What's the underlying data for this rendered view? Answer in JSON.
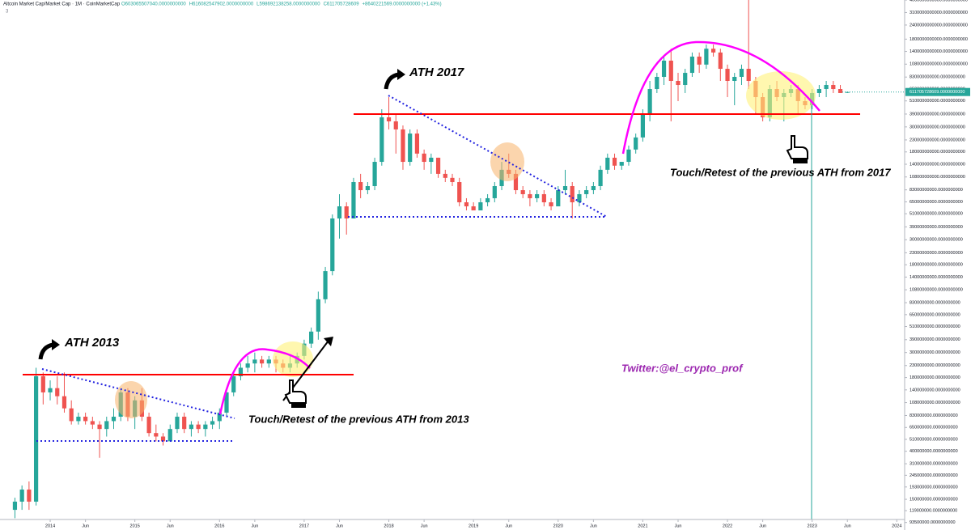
{
  "chart_data": {
    "type": "candlestick",
    "title": "Altcoin Market Cap/Market Cap · 1M · CoinMarketCap",
    "ohlc_header": [
      "O603065507040.0000000000",
      "H616082547902.0000000000",
      "L598692138258.0000000000",
      "C611705728609",
      "+8640221569.0000000000 (+1.43%)"
    ],
    "sub_label": "3",
    "last_price_label": "611705728609.0000000000",
    "annotations": [
      "ATH 2013",
      "ATH 2017",
      "Touch/Retest of the previous ATH from 2013",
      "Touch/Retest of the previous ATH from 2017",
      "Twitter:@el_crypto_prof"
    ],
    "log_scale": true,
    "grid": false,
    "up_color": "#26a69a",
    "down_color": "#ef5350",
    "xlim": [
      "2013-06",
      "2024-02"
    ],
    "xticks": [
      {
        "value": "2014-01",
        "label": "2014"
      },
      {
        "value": "2014-06",
        "label": "Jun"
      },
      {
        "value": "2015-01",
        "label": "2015"
      },
      {
        "value": "2015-06",
        "label": "Jun"
      },
      {
        "value": "2016-01",
        "label": "2016"
      },
      {
        "value": "2016-06",
        "label": "Jun"
      },
      {
        "value": "2017-01",
        "label": "2017"
      },
      {
        "value": "2017-06",
        "label": "Jun"
      },
      {
        "value": "2018-01",
        "label": "2018"
      },
      {
        "value": "2018-06",
        "label": "Jun"
      },
      {
        "value": "2019-01",
        "label": "2019"
      },
      {
        "value": "2019-06",
        "label": "Jun"
      },
      {
        "value": "2020-01",
        "label": "2020"
      },
      {
        "value": "2020-06",
        "label": "Jun"
      },
      {
        "value": "2021-01",
        "label": "2021"
      },
      {
        "value": "2021-06",
        "label": "Jun"
      },
      {
        "value": "2022-01",
        "label": "2022"
      },
      {
        "value": "2022-06",
        "label": "Jun"
      },
      {
        "value": "2023-01",
        "label": "2023"
      },
      {
        "value": "2023-06",
        "label": "Jun"
      },
      {
        "value": "2024-01",
        "label": "2024"
      }
    ],
    "ylim": [
      90000000.0,
      4000000000000.0
    ],
    "yticks": [
      {
        "value": 4000000000000.0,
        "label": "4000000000000.0000000000"
      },
      {
        "value": 3100000000000.0,
        "label": "3100000000000.0000000000"
      },
      {
        "value": 2400000000000.0,
        "label": "2400000000000.0000000000"
      },
      {
        "value": 1800000000000.0,
        "label": "1800000000000.0000000000"
      },
      {
        "value": 1400000000000.0,
        "label": "1400000000000.0000000000"
      },
      {
        "value": 1080000000000.0,
        "label": "1080000000000.0000000000"
      },
      {
        "value": 830000000000.0,
        "label": "830000000000.0000000000"
      },
      {
        "value": 650000000000.0,
        "label": "650000000000.0000000000"
      },
      {
        "value": 510000000000.0,
        "label": "510000000000.0000000000"
      },
      {
        "value": 390000000000.0,
        "label": "390000000000.0000000000"
      },
      {
        "value": 300000000000.0,
        "label": "300000000000.0000000000"
      },
      {
        "value": 230000000000.0,
        "label": "230000000000.0000000000"
      },
      {
        "value": 180000000000.0,
        "label": "180000000000.0000000000"
      },
      {
        "value": 140000000000.0,
        "label": "140000000000.0000000000"
      },
      {
        "value": 108000000000.0,
        "label": "108000000000.0000000000"
      },
      {
        "value": 83000000000.0,
        "label": "83000000000.0000000000"
      },
      {
        "value": 65000000000.0,
        "label": "65000000000.0000000000"
      },
      {
        "value": 51000000000.0,
        "label": "51000000000.0000000000"
      },
      {
        "value": 39000000000.0,
        "label": "39000000000.0000000000"
      },
      {
        "value": 30000000000.0,
        "label": "30000000000.0000000000"
      },
      {
        "value": 23000000000.0,
        "label": "23000000000.0000000000"
      },
      {
        "value": 18000000000.0,
        "label": "18000000000.0000000000"
      },
      {
        "value": 14000000000.0,
        "label": "14000000000.0000000000"
      },
      {
        "value": 10800000000.0,
        "label": "10800000000.0000000000"
      },
      {
        "value": 8300000000.0,
        "label": "8300000000.0000000000"
      },
      {
        "value": 6500000000.0,
        "label": "6500000000.0000000000"
      },
      {
        "value": 5100000000.0,
        "label": "5100000000.0000000000"
      },
      {
        "value": 3900000000.0,
        "label": "3900000000.0000000000"
      },
      {
        "value": 3000000000.0,
        "label": "3000000000.0000000000"
      },
      {
        "value": 2300000000.0,
        "label": "2300000000.0000000000"
      },
      {
        "value": 1800000000.0,
        "label": "1800000000.0000000000"
      },
      {
        "value": 1400000000.0,
        "label": "1400000000.0000000000"
      },
      {
        "value": 1080000000.0,
        "label": "1080000000.0000000000"
      },
      {
        "value": 830000000.0,
        "label": "830000000.0000000000"
      },
      {
        "value": 650000000.0,
        "label": "650000000.0000000000"
      },
      {
        "value": 510000000.0,
        "label": "510000000.0000000000"
      },
      {
        "value": 400000000.0,
        "label": "400000000.0000000000"
      },
      {
        "value": 310000000.0,
        "label": "310000000.0000000000"
      },
      {
        "value": 245000000.0,
        "label": "245000000.0000000000"
      },
      {
        "value": 193000000.0,
        "label": "193000000.0000000000"
      },
      {
        "value": 150000000.0,
        "label": "150000000.0000000000"
      },
      {
        "value": 119000000.0,
        "label": "119000000.0000000000"
      },
      {
        "value": 93500000.0,
        "label": "93500000.0000000000"
      }
    ],
    "x": [
      "2013-08",
      "2013-09",
      "2013-10",
      "2013-11",
      "2013-12",
      "2014-01",
      "2014-02",
      "2014-03",
      "2014-04",
      "2014-05",
      "2014-06",
      "2014-07",
      "2014-08",
      "2014-09",
      "2014-10",
      "2014-11",
      "2014-12",
      "2015-01",
      "2015-02",
      "2015-03",
      "2015-04",
      "2015-05",
      "2015-06",
      "2015-07",
      "2015-08",
      "2015-09",
      "2015-10",
      "2015-11",
      "2015-12",
      "2016-01",
      "2016-02",
      "2016-03",
      "2016-04",
      "2016-05",
      "2016-06",
      "2016-07",
      "2016-08",
      "2016-09",
      "2016-10",
      "2016-11",
      "2016-12",
      "2017-01",
      "2017-02",
      "2017-03",
      "2017-04",
      "2017-05",
      "2017-06",
      "2017-07",
      "2017-08",
      "2017-09",
      "2017-10",
      "2017-11",
      "2017-12",
      "2018-01",
      "2018-02",
      "2018-03",
      "2018-04",
      "2018-05",
      "2018-06",
      "2018-07",
      "2018-08",
      "2018-09",
      "2018-10",
      "2018-11",
      "2018-12",
      "2019-01",
      "2019-02",
      "2019-03",
      "2019-04",
      "2019-05",
      "2019-06",
      "2019-07",
      "2019-08",
      "2019-09",
      "2019-10",
      "2019-11",
      "2019-12",
      "2020-01",
      "2020-02",
      "2020-03",
      "2020-04",
      "2020-05",
      "2020-06",
      "2020-07",
      "2020-08",
      "2020-09",
      "2020-10",
      "2020-11",
      "2020-12",
      "2021-01",
      "2021-02",
      "2021-03",
      "2021-04",
      "2021-05",
      "2021-06",
      "2021-07",
      "2021-08",
      "2021-09",
      "2021-10",
      "2021-11",
      "2021-12",
      "2022-01",
      "2022-02",
      "2022-03",
      "2022-04",
      "2022-05",
      "2022-06",
      "2022-07",
      "2022-08",
      "2022-09",
      "2022-10",
      "2022-11",
      "2022-12",
      "2023-01",
      "2023-02",
      "2023-03",
      "2023-04",
      "2023-05",
      "2023-06"
    ],
    "open": [
      121000000.0,
      143000000.0,
      183000000.0,
      143000000.0,
      1850000000.0,
      1330000000.0,
      1450000000.0,
      1230000000.0,
      960000000.0,
      740000000.0,
      810000000.0,
      740000000.0,
      690000000.0,
      630000000.0,
      740000000.0,
      810000000.0,
      1330000000.0,
      810000000.0,
      1130000000.0,
      810000000.0,
      580000000.0,
      540000000.0,
      490000000.0,
      630000000.0,
      810000000.0,
      630000000.0,
      690000000.0,
      630000000.0,
      690000000.0,
      740000000.0,
      880000000.0,
      1330000000.0,
      1850000000.0,
      2200000000.0,
      2400000000.0,
      2600000000.0,
      2400000000.0,
      2600000000.0,
      2400000000.0,
      2200000000.0,
      2400000000.0,
      2800000000.0,
      3600000000.0,
      4600000000.0,
      8900000000.0,
      15800000000.0,
      46300000000.0,
      59300000000.0,
      46300000000.0,
      97300000000.0,
      82500000000.0,
      89600000000.0,
      147000000000.0,
      365000000000.0,
      336000000000.0,
      285000000000.0,
      147000000000.0,
      262000000000.0,
      174000000000.0,
      147000000000.0,
      160000000000.0,
      115000000000.0,
      106000000000.0,
      97300000000.0,
      64400000000.0,
      59300000000.0,
      54600000000.0,
      64400000000.0,
      70000000000.0,
      89600000000.0,
      125000000000.0,
      115000000000.0,
      82500000000.0,
      76000000000.0,
      70000000000.0,
      76000000000.0,
      64400000000.0,
      59300000000.0,
      82500000000.0,
      89600000000.0,
      64400000000.0,
      76000000000.0,
      82500000000.0,
      89600000000.0,
      125000000000.0,
      160000000000.0,
      136000000000.0,
      147000000000.0,
      189000000000.0,
      242000000000.0,
      396000000000.0,
      650000000000.0,
      833000000000.0,
      1160000000000.0,
      767000000000.0,
      706000000000.0,
      904000000000.0,
      1260000000000.0,
      1070000000000.0,
      1480000000000.0,
      1370000000000.0,
      982000000000.0,
      767000000000.0,
      833000000000.0,
      982000000000.0,
      767000000000.0,
      551000000000.0,
      365000000000.0,
      650000000000.0,
      551000000000.0,
      599000000000.0,
      650000000000.0,
      508000000000.0,
      467000000000.0,
      599000000000.0,
      650000000000.0,
      706000000000.0,
      650000000000.0,
      603065507040
    ],
    "high": [
      155000000.0,
      199000000.0,
      216000000.0,
      2200000000.0,
      2000000000.0,
      1700000000.0,
      1850000000.0,
      2000000000.0,
      1130000000.0,
      880000000.0,
      880000000.0,
      810000000.0,
      740000000.0,
      810000000.0,
      960000000.0,
      1450000000.0,
      1450000000.0,
      1230000000.0,
      1450000000.0,
      880000000.0,
      690000000.0,
      580000000.0,
      690000000.0,
      880000000.0,
      880000000.0,
      740000000.0,
      740000000.0,
      740000000.0,
      810000000.0,
      960000000.0,
      1450000000.0,
      2000000000.0,
      2400000000.0,
      2800000000.0,
      3000000000.0,
      2800000000.0,
      2800000000.0,
      2800000000.0,
      2600000000.0,
      2800000000.0,
      3000000000.0,
      3900000000.0,
      5000000000.0,
      10400000000.0,
      17200000000.0,
      50300000000.0,
      76000000000.0,
      64400000000.0,
      106000000000.0,
      115000000000.0,
      97300000000.0,
      160000000000.0,
      430000000000.0,
      551000000000.0,
      396000000000.0,
      309000000000.0,
      285000000000.0,
      285000000000.0,
      189000000000.0,
      174000000000.0,
      160000000000.0,
      125000000000.0,
      115000000000.0,
      106000000000.0,
      70000000000.0,
      64400000000.0,
      70000000000.0,
      76000000000.0,
      97300000000.0,
      147000000000.0,
      174000000000.0,
      125000000000.0,
      89600000000.0,
      82500000000.0,
      82500000000.0,
      82500000000.0,
      70000000000.0,
      89600000000.0,
      125000000000.0,
      97300000000.0,
      82500000000.0,
      89600000000.0,
      97300000000.0,
      136000000000.0,
      174000000000.0,
      174000000000.0,
      147000000000.0,
      205000000000.0,
      262000000000.0,
      430000000000.0,
      767000000000.0,
      904000000000.0,
      1260000000000.0,
      1480000000000.0,
      904000000000.0,
      982000000000.0,
      1370000000000.0,
      1370000000000.0,
      1610000000000.0,
      1610000000000.0,
      1480000000000.0,
      1070000000000.0,
      904000000000.0,
      1070000000000.0,
      4000000000000.0,
      833000000000.0,
      599000000000.0,
      706000000000.0,
      767000000000.0,
      650000000000.0,
      706000000000.0,
      706000000000.0,
      551000000000.0,
      650000000000.0,
      706000000000.0,
      767000000000.0,
      767000000000.0,
      706000000000.0,
      616082547902
    ],
    "low": [
      102000000.0,
      121000000.0,
      121000000.0,
      132000000.0,
      1040000000.0,
      1130000000.0,
      1040000000.0,
      880000000.0,
      690000000.0,
      690000000.0,
      690000000.0,
      630000000.0,
      350000000.0,
      540000000.0,
      630000000.0,
      740000000.0,
      740000000.0,
      630000000.0,
      740000000.0,
      540000000.0,
      490000000.0,
      450000000.0,
      490000000.0,
      580000000.0,
      580000000.0,
      540000000.0,
      580000000.0,
      540000000.0,
      630000000.0,
      630000000.0,
      810000000.0,
      1230000000.0,
      1700000000.0,
      2000000000.0,
      2000000000.0,
      2200000000.0,
      2200000000.0,
      2000000000.0,
      2000000000.0,
      2000000000.0,
      2200000000.0,
      2600000000.0,
      3300000000.0,
      3900000000.0,
      8200000000.0,
      14500000000.0,
      30700000000.0,
      33300000000.0,
      46300000000.0,
      70000000000.0,
      76000000000.0,
      82500000000.0,
      136000000000.0,
      285000000000.0,
      174000000000.0,
      125000000000.0,
      136000000000.0,
      160000000000.0,
      125000000000.0,
      115000000000.0,
      106000000000.0,
      97300000000.0,
      89600000000.0,
      59300000000.0,
      54600000000.0,
      54600000000.0,
      54600000000.0,
      59300000000.0,
      64400000000.0,
      82500000000.0,
      106000000000.0,
      76000000000.0,
      70000000000.0,
      59300000000.0,
      64400000000.0,
      59300000000.0,
      54600000000.0,
      59300000000.0,
      76000000000.0,
      46300000000.0,
      59300000000.0,
      70000000000.0,
      76000000000.0,
      82500000000.0,
      115000000000.0,
      125000000000.0,
      125000000000.0,
      136000000000.0,
      174000000000.0,
      222000000000.0,
      336000000000.0,
      599000000000.0,
      706000000000.0,
      336000000000.0,
      508000000000.0,
      599000000000.0,
      833000000000.0,
      904000000000.0,
      982000000000.0,
      1260000000000.0,
      767000000000.0,
      551000000000.0,
      467000000000.0,
      706000000000.0,
      650000000000.0,
      396000000000.0,
      336000000000.0,
      336000000000.0,
      508000000000.0,
      336000000000.0,
      551000000000.0,
      396000000000.0,
      430000000000.0,
      430000000000.0,
      551000000000.0,
      551000000000.0,
      599000000000.0,
      599000000000.0,
      598692138258
    ],
    "close": [
      143000000.0,
      183000000.0,
      143000000.0,
      1850000000.0,
      1330000000.0,
      1450000000.0,
      1230000000.0,
      960000000.0,
      740000000.0,
      810000000.0,
      740000000.0,
      690000000.0,
      630000000.0,
      740000000.0,
      810000000.0,
      1330000000.0,
      810000000.0,
      1130000000.0,
      810000000.0,
      580000000.0,
      540000000.0,
      490000000.0,
      630000000.0,
      810000000.0,
      630000000.0,
      690000000.0,
      630000000.0,
      690000000.0,
      740000000.0,
      880000000.0,
      1330000000.0,
      1850000000.0,
      2200000000.0,
      2400000000.0,
      2600000000.0,
      2400000000.0,
      2600000000.0,
      2400000000.0,
      2200000000.0,
      2400000000.0,
      2800000000.0,
      3600000000.0,
      4600000000.0,
      8900000000.0,
      15800000000.0,
      46300000000.0,
      59300000000.0,
      46300000000.0,
      97300000000.0,
      82500000000.0,
      89600000000.0,
      147000000000.0,
      365000000000.0,
      336000000000.0,
      285000000000.0,
      147000000000.0,
      262000000000.0,
      174000000000.0,
      147000000000.0,
      160000000000.0,
      115000000000.0,
      106000000000.0,
      97300000000.0,
      64400000000.0,
      59300000000.0,
      54600000000.0,
      64400000000.0,
      70000000000.0,
      89600000000.0,
      125000000000.0,
      115000000000.0,
      82500000000.0,
      76000000000.0,
      70000000000.0,
      76000000000.0,
      64400000000.0,
      59300000000.0,
      82500000000.0,
      89600000000.0,
      64400000000.0,
      76000000000.0,
      82500000000.0,
      89600000000.0,
      125000000000.0,
      160000000000.0,
      136000000000.0,
      147000000000.0,
      189000000000.0,
      242000000000.0,
      396000000000.0,
      650000000000.0,
      833000000000.0,
      1160000000000.0,
      767000000000.0,
      706000000000.0,
      904000000000.0,
      1260000000000.0,
      1070000000000.0,
      1480000000000.0,
      1370000000000.0,
      982000000000.0,
      767000000000.0,
      833000000000.0,
      982000000000.0,
      767000000000.0,
      551000000000.0,
      365000000000.0,
      650000000000.0,
      551000000000.0,
      599000000000.0,
      650000000000.0,
      508000000000.0,
      467000000000.0,
      599000000000.0,
      650000000000.0,
      706000000000.0,
      650000000000.0,
      599000000000.0,
      611705728609
    ]
  }
}
